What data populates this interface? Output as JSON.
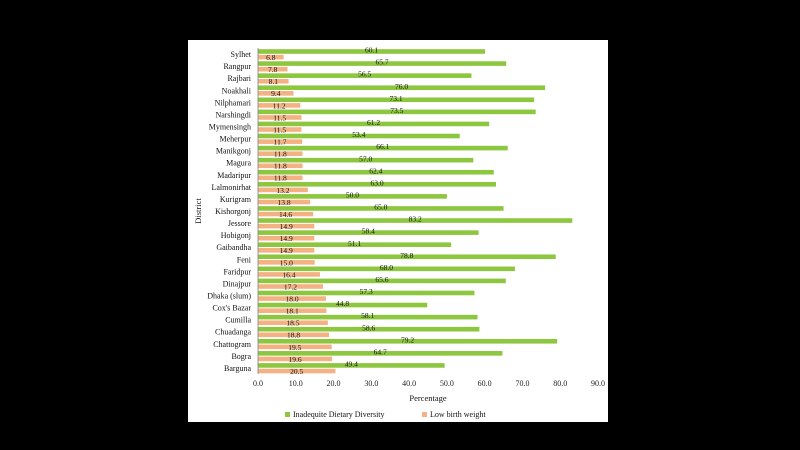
{
  "chart_data": {
    "type": "bar",
    "orientation": "horizontal",
    "xlabel": "Percentage",
    "ylabel": "District",
    "xlim": [
      0,
      90
    ],
    "xticks": [
      "0.0",
      "10.0",
      "20.0",
      "30.0",
      "40.0",
      "50.0",
      "60.0",
      "70.0",
      "80.0",
      "90.0"
    ],
    "grid": false,
    "legend_position": "bottom",
    "categories": [
      "Sylhet",
      "Rangpur",
      "Rajbari",
      "Noakhali",
      "Nilphamari",
      "Narshingdi",
      "Mymensingh",
      "Meherpur",
      "Manikgonj",
      "Magura",
      "Madaripur",
      "Lalmonirhat",
      "Kurigram",
      "Kishorgonj",
      "Jessore",
      "Hobigonj",
      "Gaibandha",
      "Feni",
      "Faridpur",
      "Dinajpur",
      "Dhaka (slum)",
      "Cox's Bazar",
      "Cumilla",
      "Chuadanga",
      "Chattogram",
      "Bogra",
      "Barguna"
    ],
    "series": [
      {
        "name": "Inadequite Dietary Diversity",
        "color": "#8dc63f",
        "values": [
          60.1,
          65.7,
          56.5,
          76.0,
          73.1,
          73.5,
          61.2,
          53.4,
          66.1,
          57.0,
          62.4,
          63.0,
          50.0,
          65.0,
          83.2,
          58.4,
          51.1,
          78.8,
          68.0,
          65.6,
          57.3,
          44.8,
          58.1,
          58.6,
          79.2,
          64.7,
          49.4
        ],
        "labels": [
          "60.1",
          "65.7",
          "56.5",
          "76.0",
          "73.1",
          "73.5",
          "61.2",
          "53.4",
          "66.1",
          "57.0",
          "62.4",
          "63.0",
          "50.0",
          "65.0",
          "83.2",
          "58.4",
          "51.1",
          "78.8",
          "68.0",
          "65.6",
          "57.3",
          "44.8",
          "58.1",
          "58.6",
          "79.2",
          "64.7",
          "49.4"
        ]
      },
      {
        "name": "Low birth weight",
        "color": "#f4b183",
        "values": [
          6.8,
          7.8,
          8.1,
          9.4,
          11.2,
          11.5,
          11.5,
          11.7,
          11.8,
          11.8,
          11.8,
          13.2,
          13.8,
          14.6,
          14.9,
          14.9,
          14.9,
          15.0,
          16.4,
          17.2,
          18.0,
          18.1,
          18.5,
          18.8,
          19.5,
          19.6,
          20.5
        ],
        "labels": [
          "6.8",
          "7.8",
          "8.1",
          "9.4",
          "11.2",
          "11.5",
          "11.5",
          "11.7",
          "11.8",
          "11.8",
          "11.8",
          "13.2",
          "13.8",
          "14.6",
          "14.9",
          "14.9",
          "14.9",
          "15.0",
          "16.4",
          "17.2",
          "18.0",
          "18.1",
          "18.5",
          "18.8",
          "19.5",
          "19.6",
          "20.5"
        ]
      }
    ]
  }
}
